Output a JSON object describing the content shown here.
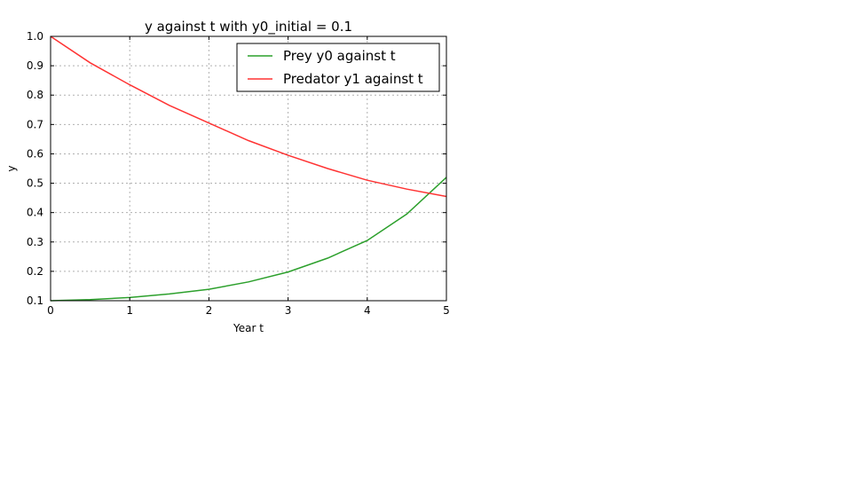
{
  "chart_data": {
    "type": "line",
    "title": "y against t with y0_initial = 0.1",
    "xlabel": "Year t",
    "ylabel": "y",
    "xlim": [
      0,
      5
    ],
    "ylim": [
      0.1,
      1.0
    ],
    "xticks": [
      "0",
      "1",
      "2",
      "3",
      "4",
      "5"
    ],
    "yticks": [
      "0.1",
      "0.2",
      "0.3",
      "0.4",
      "0.5",
      "0.6",
      "0.7",
      "0.8",
      "0.9",
      "1.0"
    ],
    "grid": true,
    "legend_position": "top-right",
    "series": [
      {
        "name": "Prey y0 against t",
        "color": "#2ca02c",
        "x": [
          0,
          0.5,
          1,
          1.5,
          2,
          2.5,
          3,
          3.5,
          4,
          4.5,
          5
        ],
        "y": [
          0.1,
          0.104,
          0.111,
          0.123,
          0.139,
          0.164,
          0.198,
          0.245,
          0.305,
          0.395,
          0.52
        ]
      },
      {
        "name": "Predator y1 against t",
        "color": "#ff3333",
        "x": [
          0,
          0.5,
          1,
          1.5,
          2,
          2.5,
          3,
          3.5,
          4,
          4.5,
          5
        ],
        "y": [
          1.0,
          0.91,
          0.835,
          0.765,
          0.705,
          0.645,
          0.595,
          0.55,
          0.51,
          0.48,
          0.455
        ]
      }
    ]
  }
}
